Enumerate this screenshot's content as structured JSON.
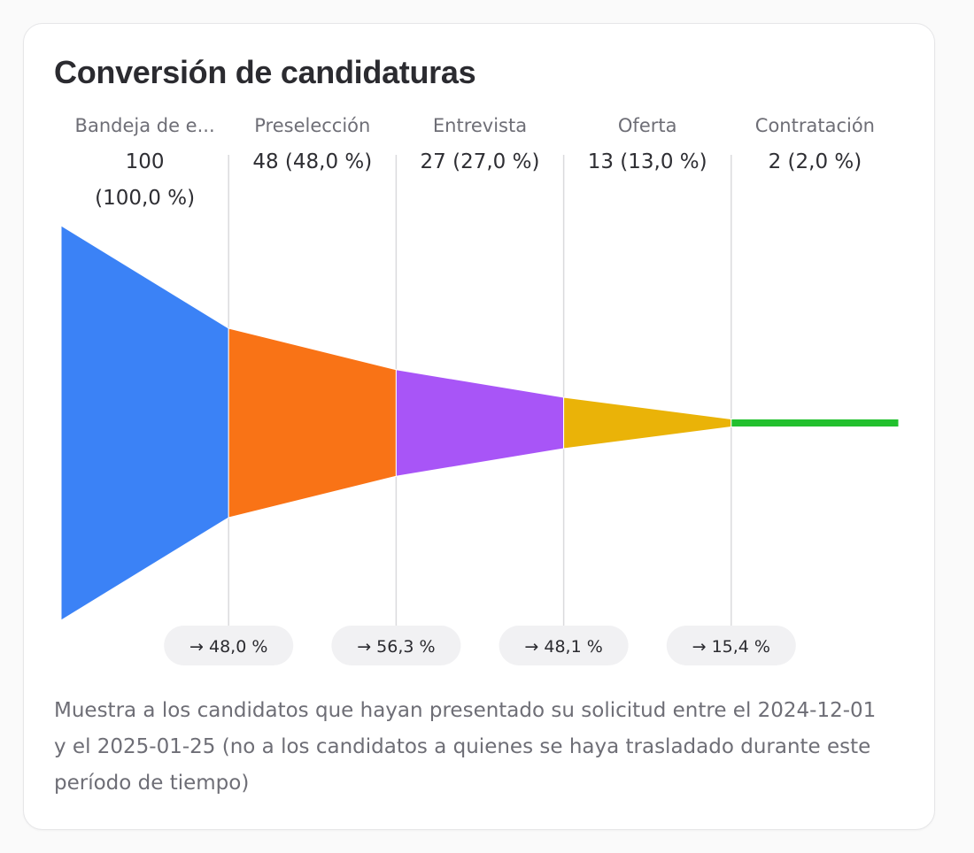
{
  "card": {
    "title": "Conversión de candidaturas",
    "footnote": "Muestra a los candidatos que hayan presentado su solicitud entre el 2024-12-01 y el 2025-01-25 (no a los candidatos a quienes se haya trasladado durante este período de tiempo)"
  },
  "chart_data": {
    "type": "funnel",
    "title": "Conversión de candidaturas",
    "stages": [
      {
        "name": "Bandeja de e...",
        "value": 100,
        "value_lines": [
          "100",
          "(100,0 %)"
        ],
        "color": "#3b82f6"
      },
      {
        "name": "Preselección",
        "value": 48,
        "value_lines": [
          "48 (48,0 %)"
        ],
        "color": "#f97316"
      },
      {
        "name": "Entrevista",
        "value": 27,
        "value_lines": [
          "27 (27,0 %)"
        ],
        "color": "#a855f7"
      },
      {
        "name": "Oferta",
        "value": 13,
        "value_lines": [
          "13 (13,0 %)"
        ],
        "color": "#eab308"
      },
      {
        "name": "Contratación",
        "value": 2,
        "value_lines": [
          "2 (2,0 %)"
        ],
        "color": "#22c02e"
      }
    ],
    "conversions": [
      "48,0 %",
      "56,3 %",
      "48,1 %",
      "15,4 %"
    ],
    "arrow_glyph": "→",
    "divider_color": "#dadadd",
    "pill_color": "#f1f1f3"
  }
}
